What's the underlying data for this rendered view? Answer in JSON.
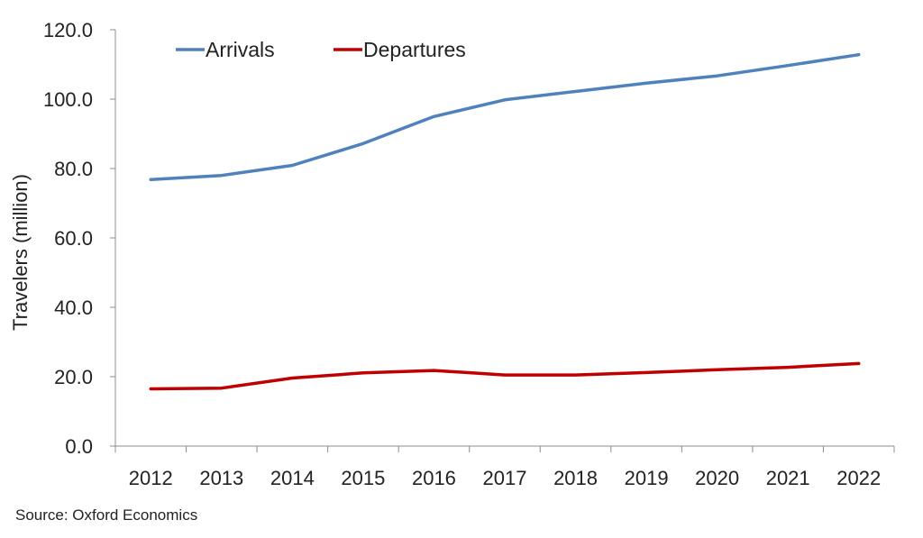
{
  "chart_data": {
    "type": "line",
    "title": "",
    "xlabel": "",
    "ylabel": "Travelers (million)",
    "categories": [
      "2012",
      "2013",
      "2014",
      "2015",
      "2016",
      "2017",
      "2018",
      "2019",
      "2020",
      "2021",
      "2022"
    ],
    "series": [
      {
        "name": "Arrivals",
        "color": "#4f81bd",
        "values": [
          76.8,
          78.0,
          80.9,
          87.2,
          95.0,
          99.8,
          102.2,
          104.6,
          106.7,
          109.7,
          112.8
        ]
      },
      {
        "name": "Departures",
        "color": "#c00000",
        "values": [
          16.5,
          16.7,
          19.6,
          21.1,
          21.8,
          20.5,
          20.5,
          21.2,
          22.0,
          22.7,
          23.8
        ]
      }
    ],
    "ylim": [
      0,
      120
    ],
    "yticks": [
      "0.0",
      "20.0",
      "40.0",
      "60.0",
      "80.0",
      "100.0",
      "120.0"
    ],
    "grid": false,
    "legend_position": "top-left"
  },
  "source_text": "Source: Oxford Economics"
}
